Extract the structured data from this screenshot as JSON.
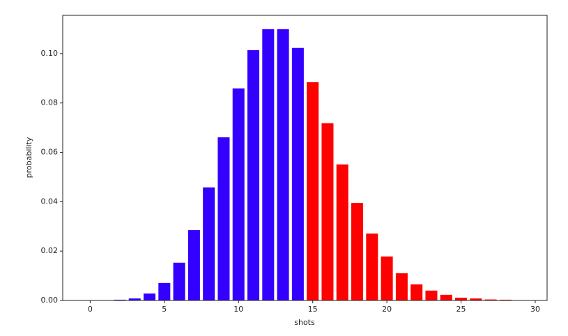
{
  "chart_data": {
    "type": "bar",
    "x_label": "shots",
    "y_label": "probability",
    "x": [
      0,
      1,
      2,
      3,
      4,
      5,
      6,
      7,
      8,
      9,
      10,
      11,
      12,
      13,
      14,
      15,
      16,
      17,
      18,
      19,
      20,
      21,
      22,
      23,
      24,
      25,
      26,
      27,
      28,
      29
    ],
    "values": [
      0,
      0.0001,
      0.0003,
      0.0008,
      0.0028,
      0.0071,
      0.0153,
      0.0285,
      0.0458,
      0.0661,
      0.0859,
      0.1014,
      0.1099,
      0.1099,
      0.1023,
      0.0884,
      0.0718,
      0.0551,
      0.0395,
      0.0271,
      0.0178,
      0.011,
      0.0065,
      0.004,
      0.0023,
      0.0011,
      0.0008,
      0.0004,
      0.0003,
      0.0001
    ],
    "colors": [
      "#3300ff",
      "#3300ff",
      "#3300ff",
      "#3300ff",
      "#3300ff",
      "#3300ff",
      "#3300ff",
      "#3300ff",
      "#3300ff",
      "#3300ff",
      "#3300ff",
      "#3300ff",
      "#3300ff",
      "#3300ff",
      "#3300ff",
      "#ff0000",
      "#ff0000",
      "#ff0000",
      "#ff0000",
      "#ff0000",
      "#ff0000",
      "#ff0000",
      "#ff0000",
      "#ff0000",
      "#ff0000",
      "#ff0000",
      "#ff0000",
      "#ff0000",
      "#ff0000",
      "#ff0000"
    ],
    "bar_width": 0.8,
    "xlim": [
      -1.85,
      30.8
    ],
    "ylim": [
      0,
      0.1155
    ],
    "xticks": [
      0,
      5,
      10,
      15,
      20,
      25,
      30
    ],
    "yticks": [
      {
        "value": 0,
        "label": "0.00"
      },
      {
        "value": 0.02,
        "label": "0.02"
      },
      {
        "value": 0.04,
        "label": "0.04"
      },
      {
        "value": 0.06,
        "label": "0.06"
      },
      {
        "value": 0.08,
        "label": "0.08"
      },
      {
        "value": 0.1,
        "label": "0.10"
      }
    ],
    "grid": false
  }
}
